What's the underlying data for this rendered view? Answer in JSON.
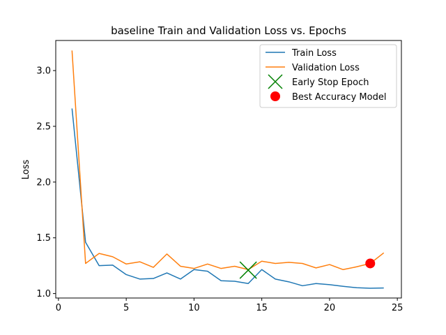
{
  "chart_data": {
    "type": "line",
    "title": "baseline Train and Validation Loss vs. Epochs",
    "xlabel": "",
    "ylabel": "Loss",
    "xlim": [
      -0.2,
      25.3
    ],
    "ylim": [
      0.96,
      3.27
    ],
    "xticks": [
      0,
      5,
      10,
      15,
      20,
      25
    ],
    "yticks": [
      1.0,
      1.5,
      2.0,
      2.5,
      3.0
    ],
    "ytick_labels": [
      "1.0",
      "1.5",
      "2.0",
      "2.5",
      "3.0"
    ],
    "grid": false,
    "legend_position": "top-right",
    "series": [
      {
        "name": "Train Loss",
        "color": "#1f77b4",
        "x": [
          1,
          2,
          3,
          4,
          5,
          6,
          7,
          8,
          9,
          10,
          11,
          12,
          13,
          14,
          15,
          16,
          17,
          18,
          19,
          20,
          21,
          22,
          23,
          24
        ],
        "y": [
          2.66,
          1.46,
          1.25,
          1.255,
          1.17,
          1.13,
          1.135,
          1.185,
          1.13,
          1.215,
          1.2,
          1.115,
          1.11,
          1.09,
          1.215,
          1.13,
          1.105,
          1.07,
          1.09,
          1.08,
          1.065,
          1.052,
          1.048,
          1.05
        ]
      },
      {
        "name": "Validation Loss",
        "color": "#ff7f0e",
        "x": [
          1,
          2,
          3,
          4,
          5,
          6,
          7,
          8,
          9,
          10,
          11,
          12,
          13,
          14,
          15,
          16,
          17,
          18,
          19,
          20,
          21,
          22,
          23,
          24
        ],
        "y": [
          3.18,
          1.27,
          1.36,
          1.33,
          1.265,
          1.285,
          1.235,
          1.355,
          1.245,
          1.225,
          1.265,
          1.225,
          1.245,
          1.215,
          1.29,
          1.27,
          1.28,
          1.27,
          1.23,
          1.26,
          1.215,
          1.24,
          1.27,
          1.365
        ]
      }
    ],
    "markers": [
      {
        "name": "Early Stop Epoch",
        "symbol": "x",
        "color": "#008000",
        "x": 14,
        "y": 1.21
      },
      {
        "name": "Best Accuracy Model",
        "symbol": "circle",
        "color": "#ff0000",
        "x": 23,
        "y": 1.27
      }
    ]
  }
}
